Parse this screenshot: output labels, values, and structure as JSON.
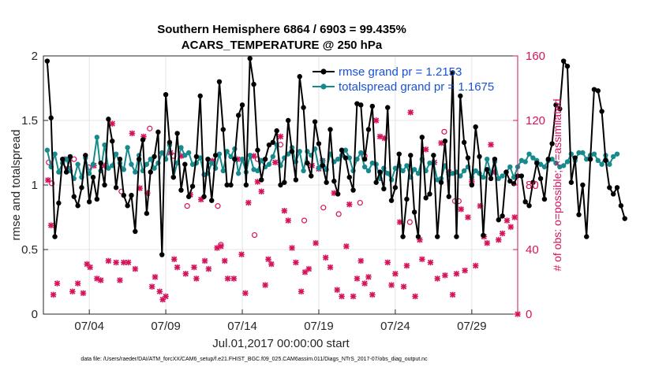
{
  "chart_data": {
    "type": "line",
    "title_line1": "Southern Hemisphere 6864 / 6903 = 99.435%",
    "title_line2": "ACARS_TEMPERATURE @ 250 hPa",
    "xlabel": "Jul.01,2017 00:00:00 start",
    "ylabel_left": "rmse and totalspread",
    "ylabel_right": "# of obs: o=possible; ×=assimilated",
    "ylim_left": [
      0,
      2
    ],
    "ylim_right": [
      0,
      160
    ],
    "xlim_days": [
      1.0,
      32.0
    ],
    "left_ticks": [
      "0",
      "0.5",
      "1",
      "1.5",
      "2"
    ],
    "right_ticks": [
      "0",
      "40",
      "80",
      "120",
      "160"
    ],
    "x_ticks": [
      {
        "day": 4,
        "label": "07/04"
      },
      {
        "day": 9,
        "label": "07/09"
      },
      {
        "day": 14,
        "label": "07/14"
      },
      {
        "day": 19,
        "label": "07/19"
      },
      {
        "day": 24,
        "label": "07/24"
      },
      {
        "day": 29,
        "label": "07/29"
      }
    ],
    "grid": true,
    "legend_position": "top-right",
    "series": [
      {
        "name": "rmse grand pr = 1.2153",
        "color": "#000000",
        "axis": "left",
        "t_start": 1.25,
        "dt": 0.25,
        "values": [
          1.96,
          1.52,
          0.6,
          0.86,
          1.2,
          1.1,
          1.22,
          0.91,
          0.84,
          0.98,
          1.23,
          0.87,
          1.06,
          0.89,
          1.17,
          1.0,
          1.51,
          1.34,
          0.98,
          1.2,
          0.92,
          0.84,
          0.92,
          0.64,
          1.2,
          1.35,
          0.78,
          1.1,
          1.22,
          1.41,
          0.46,
          1.7,
          1.33,
          1.06,
          1.4,
          0.96,
          1.16,
          0.91,
          0.99,
          1.22,
          1.69,
          0.91,
          1.2,
          0.88,
          1.23,
          1.8,
          1.43,
          1.0,
          1.0,
          1.2,
          1.54,
          1.62,
          1.0,
          1.98,
          1.78,
          1.27,
          1.04,
          1.2,
          1.31,
          1.33,
          1.42,
          1.0,
          1.02,
          1.5,
          1.26,
          1.04,
          1.84,
          1.6,
          1.17,
          1.07,
          1.49,
          1.32,
          1.15,
          1.02,
          1.43,
          1.03,
          0.93,
          1.27,
          1.21,
          1.06,
          0.96,
          1.63,
          1.62,
          1.2,
          1.43,
          1.61,
          1.02,
          1.1,
          0.97,
          1.6,
          0.88,
          0.98,
          1.24,
          0.6,
          0.89,
          1.23,
          0.79,
          0.6,
          1.37,
          0.9,
          0.93,
          1.23,
          0.6,
          1.02,
          1.34,
          0.91,
          1.87,
          0.6,
          1.69,
          1.33,
          1.21,
          1.0,
          1.45,
          1.22,
          0.61,
          1.12,
          1.05,
          1.2,
          0.73,
          0.76,
          1.1,
          1.03,
          1.01,
          1.07,
          1.07,
          0.87,
          0.84,
          1.02,
          1.17,
          1.05,
          0.89,
          1.2,
          1.32,
          1.62,
          1.59,
          1.96,
          1.92,
          1.02,
          1.21,
          0.77,
          1.0,
          0.6,
          1.2,
          1.74,
          1.73,
          1.57,
          1.19,
          0.98,
          0.93,
          0.98,
          0.84,
          0.74
        ]
      },
      {
        "name": "totalspread grand pr = 1.1675",
        "color": "#168a8c",
        "axis": "left",
        "t_start": 1.25,
        "dt": 0.25,
        "values": [
          1.27,
          1.14,
          1.24,
          1.1,
          1.17,
          1.2,
          1.11,
          1.05,
          1.16,
          1.06,
          1.21,
          1.09,
          1.16,
          1.37,
          1.11,
          1.31,
          1.13,
          1.15,
          1.24,
          1.17,
          1.12,
          1.29,
          1.16,
          1.1,
          1.23,
          1.11,
          1.16,
          1.2,
          1.13,
          1.17,
          1.25,
          1.2,
          1.31,
          1.06,
          1.17,
          1.29,
          1.23,
          1.25,
          1.16,
          1.17,
          1.21,
          1.08,
          1.09,
          1.17,
          1.13,
          1.24,
          1.11,
          1.26,
          1.22,
          1.28,
          1.09,
          1.2,
          1.1,
          1.23,
          1.12,
          1.11,
          1.19,
          1.14,
          1.16,
          1.22,
          1.31,
          1.15,
          1.21,
          1.24,
          1.29,
          1.18,
          1.26,
          1.11,
          1.26,
          1.23,
          1.28,
          1.13,
          1.19,
          1.12,
          1.24,
          1.18,
          1.2,
          1.23,
          1.27,
          1.21,
          1.11,
          1.2,
          1.25,
          1.14,
          1.11,
          1.17,
          1.16,
          1.05,
          1.13,
          1.09,
          1.04,
          1.13,
          1.15,
          1.11,
          1.15,
          1.06,
          1.12,
          1.09,
          1.2,
          1.11,
          1.17,
          1.17,
          1.04,
          1.05,
          1.15,
          1.08,
          1.09,
          1.1,
          1.07,
          1.11,
          1.14,
          1.06,
          1.11,
          1.09,
          1.06,
          1.2,
          1.09,
          1.18,
          1.05,
          1.07,
          1.1,
          1.14,
          1.06,
          1.14,
          1.19,
          1.18,
          1.24,
          1.21,
          1.19,
          1.16,
          1.14,
          1.19,
          1.2,
          1.17,
          1.14,
          1.15,
          1.18,
          1.24,
          1.19,
          1.25,
          1.25,
          1.2,
          1.23,
          1.24,
          1.19,
          1.16,
          1.23,
          1.16,
          1.22,
          1.24
        ]
      },
      {
        "name": "obs possible",
        "marker": "o",
        "color": "#d6135c",
        "axis": "right",
        "points": [
          [
            1.55,
            81
          ],
          [
            1.35,
            94
          ],
          [
            3.0,
            96
          ],
          [
            3.95,
            91
          ],
          [
            6.1,
            76
          ],
          [
            7.95,
            115
          ],
          [
            9.5,
            98
          ],
          [
            10.4,
            67
          ],
          [
            12.4,
            67
          ],
          [
            12.6,
            43
          ],
          [
            14.8,
            49
          ],
          [
            15.0,
            96
          ],
          [
            16.5,
            105
          ],
          [
            18.05,
            58
          ],
          [
            19.3,
            66
          ],
          [
            20.3,
            62
          ],
          [
            21.7,
            69
          ],
          [
            22.0,
            98
          ],
          [
            24.95,
            57
          ],
          [
            27.2,
            113
          ],
          [
            27.9,
            70
          ],
          [
            28.15,
            70
          ]
        ]
      },
      {
        "name": "obs assimilated",
        "marker": "x",
        "color": "#d6135c",
        "axis": "right",
        "points": [
          [
            1.3,
            83
          ],
          [
            1.5,
            55
          ],
          [
            1.65,
            12
          ],
          [
            1.9,
            19
          ],
          [
            2.4,
            96
          ],
          [
            2.6,
            90
          ],
          [
            2.9,
            14
          ],
          [
            3.25,
            19
          ],
          [
            3.6,
            13
          ],
          [
            3.85,
            31
          ],
          [
            4.05,
            29
          ],
          [
            4.3,
            92
          ],
          [
            4.5,
            22
          ],
          [
            4.75,
            21
          ],
          [
            5.0,
            92
          ],
          [
            5.25,
            33
          ],
          [
            5.5,
            118
          ],
          [
            5.75,
            32
          ],
          [
            6.0,
            21
          ],
          [
            6.25,
            32
          ],
          [
            6.55,
            32
          ],
          [
            6.8,
            112
          ],
          [
            7.0,
            28
          ],
          [
            7.3,
            78
          ],
          [
            7.55,
            110
          ],
          [
            7.8,
            75
          ],
          [
            8.1,
            17
          ],
          [
            8.3,
            23
          ],
          [
            8.6,
            14
          ],
          [
            8.8,
            9
          ],
          [
            9.0,
            11
          ],
          [
            9.3,
            100
          ],
          [
            9.55,
            34
          ],
          [
            9.75,
            29
          ],
          [
            10.0,
            98
          ],
          [
            10.3,
            25
          ],
          [
            10.6,
            74
          ],
          [
            10.85,
            29
          ],
          [
            11.0,
            22
          ],
          [
            11.3,
            71
          ],
          [
            11.55,
            33
          ],
          [
            11.8,
            28
          ],
          [
            12.05,
            95
          ],
          [
            12.35,
            41
          ],
          [
            12.6,
            42
          ],
          [
            12.85,
            33
          ],
          [
            13.05,
            22
          ],
          [
            13.45,
            22
          ],
          [
            13.7,
            96
          ],
          [
            13.95,
            37
          ],
          [
            14.2,
            13
          ],
          [
            14.4,
            69
          ],
          [
            14.75,
            98
          ],
          [
            15.0,
            82
          ],
          [
            15.25,
            76
          ],
          [
            15.5,
            18
          ],
          [
            15.7,
            34
          ],
          [
            15.9,
            31
          ],
          [
            16.15,
            94
          ],
          [
            16.5,
            110
          ],
          [
            16.75,
            64
          ],
          [
            17.0,
            58
          ],
          [
            17.25,
            41
          ],
          [
            17.5,
            32
          ],
          [
            17.85,
            14
          ],
          [
            18.1,
            26
          ],
          [
            18.35,
            28
          ],
          [
            18.55,
            92
          ],
          [
            18.8,
            44
          ],
          [
            19.0,
            90
          ],
          [
            19.25,
            95
          ],
          [
            19.45,
            35
          ],
          [
            19.75,
            29
          ],
          [
            20.0,
            75
          ],
          [
            20.2,
            15
          ],
          [
            20.5,
            11
          ],
          [
            20.8,
            42
          ],
          [
            21.0,
            68
          ],
          [
            21.25,
            11
          ],
          [
            21.5,
            22
          ],
          [
            21.75,
            33
          ],
          [
            22.0,
            19
          ],
          [
            22.25,
            23
          ],
          [
            22.5,
            12
          ],
          [
            22.75,
            120
          ],
          [
            23.0,
            110
          ],
          [
            23.3,
            109
          ],
          [
            23.5,
            32
          ],
          [
            23.75,
            18
          ],
          [
            24.0,
            25
          ],
          [
            24.3,
            57
          ],
          [
            24.55,
            17
          ],
          [
            24.75,
            30
          ],
          [
            25.0,
            125
          ],
          [
            25.3,
            11
          ],
          [
            25.6,
            46
          ],
          [
            25.75,
            34
          ],
          [
            26.0,
            102
          ],
          [
            26.3,
            32
          ],
          [
            26.55,
            94
          ],
          [
            26.75,
            22
          ],
          [
            27.0,
            106
          ],
          [
            27.25,
            24
          ],
          [
            27.5,
            88
          ],
          [
            27.75,
            12
          ],
          [
            28.0,
            25
          ],
          [
            28.3,
            65
          ],
          [
            28.55,
            27
          ],
          [
            28.75,
            60
          ],
          [
            29.0,
            82
          ],
          [
            29.25,
            30
          ],
          [
            29.55,
            67
          ],
          [
            29.8,
            48
          ],
          [
            30.0,
            44
          ],
          [
            30.25,
            105
          ],
          [
            30.5,
            88
          ],
          [
            30.75,
            46
          ],
          [
            31.0,
            50
          ],
          [
            31.3,
            58
          ],
          [
            31.55,
            54
          ],
          [
            31.8,
            60
          ],
          [
            32.0,
            0
          ]
        ]
      }
    ]
  },
  "footer": {
    "data_file": "data file: /Users/raeder/DAI/ATM_forcXX/CAM6_setup/f.e21.FHIST_BGC.f09_025.CAM6assim.011/Diags_NTrS_2017-07/obs_diag_output.nc"
  },
  "colors": {
    "rmse": "#000000",
    "spread": "#168a8c",
    "obs": "#d6135c",
    "legend_text": "#1a52d6"
  }
}
